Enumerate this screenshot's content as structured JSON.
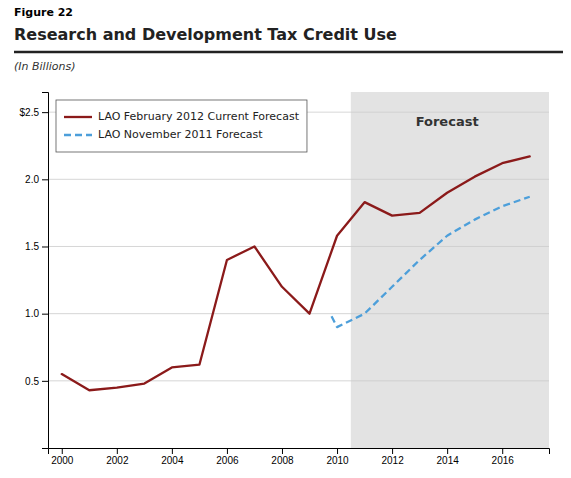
{
  "chart_data": {
    "type": "line",
    "title": "Research and Development Tax Credit Use",
    "ylabel": "(In Billions)",
    "annotations": [
      {
        "text": "Figure 22"
      },
      {
        "text": "Forecast",
        "x": 2014.0,
        "y": 2.42
      }
    ],
    "shaded_region": {
      "x_start": 2010.5
    },
    "series": [
      {
        "name": "LAO February 2012 Current Forecast",
        "color": "#8b1a1a",
        "line_style": "solid",
        "x": [
          2000,
          2001,
          2002,
          2003,
          2004,
          2005,
          2006,
          2007,
          2008,
          2009,
          2010,
          2011,
          2012,
          2013,
          2014,
          2015,
          2016,
          2017
        ],
        "values": [
          0.55,
          0.43,
          0.45,
          0.48,
          0.6,
          0.62,
          1.4,
          1.5,
          1.2,
          1.0,
          1.58,
          1.83,
          1.73,
          1.75,
          1.9,
          2.02,
          2.12,
          2.17
        ]
      },
      {
        "name": "LAO November 2011 Forecast",
        "color": "#4d9fda",
        "line_style": "dashed",
        "x": [
          2009.8,
          2010,
          2011,
          2012,
          2013,
          2014,
          2015,
          2016,
          2017
        ],
        "values": [
          0.98,
          0.9,
          1.0,
          1.2,
          1.4,
          1.58,
          1.7,
          1.8,
          1.87
        ]
      }
    ],
    "xlim": [
      1999.5,
      2017.7
    ],
    "ylim": [
      0,
      2.65
    ],
    "xticks": [
      2000,
      2002,
      2004,
      2006,
      2008,
      2010,
      2012,
      2014,
      2016
    ],
    "yticks": [
      0.5,
      {
        "value": 1.0,
        "label": "1.0"
      },
      1.5,
      {
        "value": 2.0,
        "label": "2.0"
      },
      {
        "value": 2.5,
        "label": "$2.5"
      }
    ],
    "grid": true,
    "legend": "upper left"
  }
}
